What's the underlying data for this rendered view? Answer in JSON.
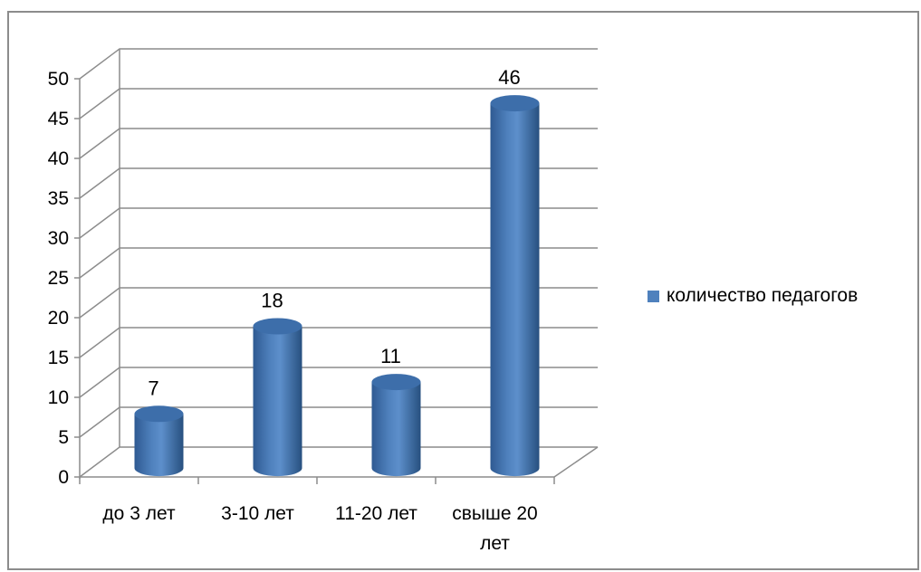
{
  "chart_data": {
    "type": "bar",
    "categories": [
      "до 3 лет",
      "3-10 лет",
      "11-20 лет",
      "свыше 20 лет"
    ],
    "series": [
      {
        "name": "количество педагогов",
        "values": [
          7,
          18,
          11,
          46
        ],
        "color": "#4f81bd"
      }
    ],
    "data_labels": [
      "7",
      "18",
      "11",
      "46"
    ],
    "yticks": [
      "0",
      "5",
      "10",
      "15",
      "20",
      "25",
      "30",
      "35",
      "40",
      "45",
      "50"
    ],
    "ylim": [
      0,
      50
    ],
    "grid": true,
    "legend_position": "right",
    "style": "3d-cylinder"
  }
}
